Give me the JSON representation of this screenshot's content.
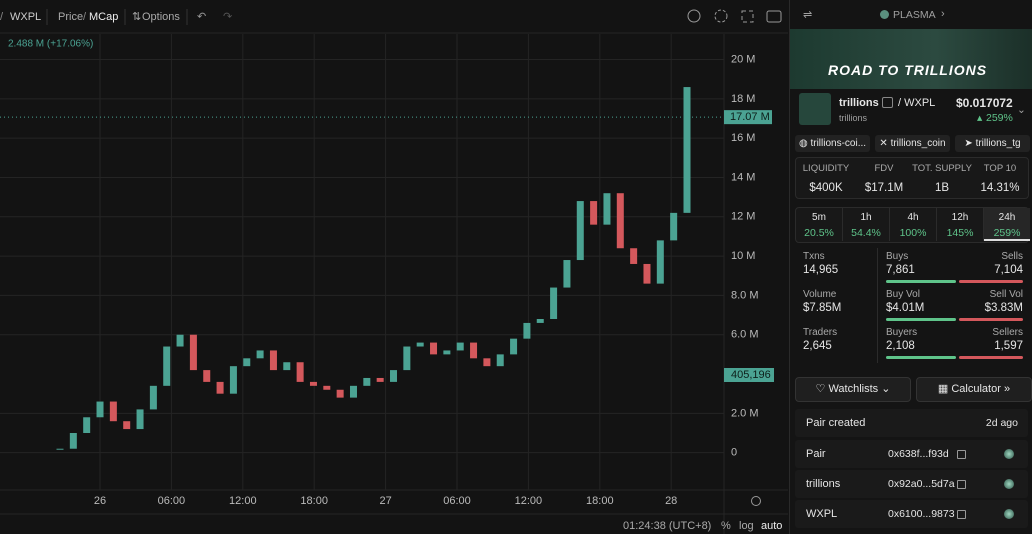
{
  "toolbar": {
    "pair": "WXPL",
    "price": "Price",
    "mcap": "MCap",
    "options": "Options"
  },
  "chart": {
    "type": "candlestick",
    "legend": "2.488 M (+17.06%)",
    "categories": [
      "26",
      "06:00",
      "12:00",
      "18:00",
      "27",
      "06:00",
      "12:00",
      "18:00",
      "28"
    ],
    "values": [
      200000,
      1000000,
      1800000,
      2600000,
      1600000,
      1200000,
      2200000,
      3400000,
      5400000,
      6000000,
      4200000,
      3600000,
      3000000,
      4400000,
      4800000,
      5200000,
      4200000,
      4600000,
      3600000,
      3400000,
      3200000,
      2800000,
      3400000,
      3800000,
      3600000,
      4200000,
      5400000,
      5600000,
      5000000,
      5200000,
      5600000,
      4800000,
      4400000,
      5000000,
      5800000,
      6600000,
      6800000,
      8400000,
      9800000,
      12800000,
      11600000,
      13200000,
      10400000,
      9600000,
      8600000,
      10800000,
      12200000,
      18600000
    ],
    "up_color": "#4ba393",
    "down_color": "#d4585c",
    "ylim": [
      -1900000,
      21300000
    ],
    "yticks": [
      {
        "value": 0,
        "label": "0"
      },
      {
        "value": 2000000,
        "label": "2.0 M"
      },
      {
        "value": 6000000,
        "label": "6.0 M"
      },
      {
        "value": 8000000,
        "label": "8.0 M"
      },
      {
        "value": 10000000,
        "label": "10 M"
      },
      {
        "value": 12000000,
        "label": "12 M"
      },
      {
        "value": 14000000,
        "label": "14 M"
      },
      {
        "value": 16000000,
        "label": "16 M"
      },
      {
        "value": 18000000,
        "label": "18 M"
      },
      {
        "value": 20000000,
        "label": "20 M"
      }
    ],
    "price_marker": {
      "value": 17070000,
      "label": "17.07 M"
    },
    "volume_marker": "405,196",
    "grid": true
  },
  "status": {
    "time": "01:24:38 (UTC+8)",
    "percent": "%",
    "log": "log",
    "auto": "auto"
  },
  "header": {
    "chain": "PLASMA"
  },
  "banner": "ROAD TO TRILLIONS",
  "token": {
    "name": "trillions",
    "quote": "/ WXPL",
    "sub": "trillions",
    "price": "$0.017072",
    "change": "259%"
  },
  "links": [
    "trillions-coi...",
    "trillions_coin",
    "trillions_tg"
  ],
  "stats": [
    {
      "label": "LIQUIDITY",
      "value": "$400K"
    },
    {
      "label": "FDV",
      "value": "$17.1M"
    },
    {
      "label": "TOT. SUPPLY",
      "value": "1B"
    },
    {
      "label": "TOP 10",
      "value": "14.31%"
    }
  ],
  "periods": [
    {
      "label": "5m",
      "value": "20.5%"
    },
    {
      "label": "1h",
      "value": "54.4%"
    },
    {
      "label": "4h",
      "value": "100%"
    },
    {
      "label": "12h",
      "value": "145%"
    },
    {
      "label": "24h",
      "value": "259%"
    }
  ],
  "activity": [
    {
      "label": "Txns",
      "value": "14,965",
      "buy_label": "Buys",
      "buy": "7,861",
      "sell_label": "Sells",
      "sell": "7,104"
    },
    {
      "label": "Volume",
      "value": "$7.85M",
      "buy_label": "Buy Vol",
      "buy": "$4.01M",
      "sell_label": "Sell Vol",
      "sell": "$3.83M"
    },
    {
      "label": "Traders",
      "value": "2,645",
      "buy_label": "Buyers",
      "buy": "2,108",
      "sell_label": "Sellers",
      "sell": "1,597"
    }
  ],
  "buttons": [
    "Watchlists",
    "Calculator"
  ],
  "pair_created": {
    "label": "Pair created",
    "value": "2d ago"
  },
  "addresses": [
    {
      "label": "Pair",
      "value": "0x638f...f93d"
    },
    {
      "label": "trillions",
      "value": "0x92a0...5d7a"
    },
    {
      "label": "WXPL",
      "value": "0x6100...9873"
    }
  ]
}
